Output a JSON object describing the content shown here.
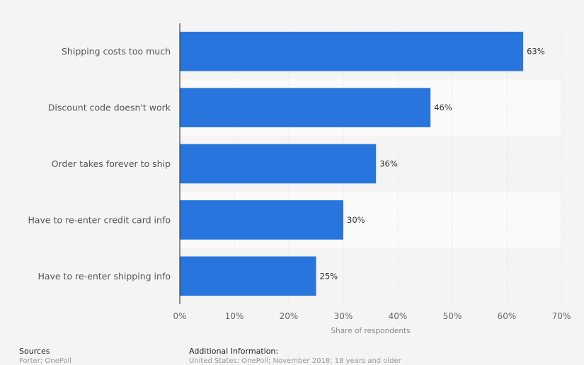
{
  "chart_data": {
    "type": "bar",
    "orientation": "horizontal",
    "categories": [
      "Shipping costs too much",
      "Discount code doesn't work",
      "Order takes forever to ship",
      "Have to re-enter credit card info",
      "Have to re-enter shipping info"
    ],
    "values": [
      63,
      46,
      36,
      30,
      25
    ],
    "value_labels": [
      "63%",
      "46%",
      "36%",
      "30%",
      "25%"
    ],
    "xlim": [
      0,
      70
    ],
    "xticks": [
      "0%",
      "10%",
      "20%",
      "30%",
      "40%",
      "50%",
      "60%",
      "70%"
    ],
    "xlabel": "Share of respondents",
    "bar_color": "#2876dd",
    "grid": true
  },
  "footer": {
    "sources_title": "Sources",
    "sources_text": "Forter; OnePoll",
    "info_title": "Additional Information:",
    "info_text": "United States; OnePoll; November 2018; 18 years and older"
  }
}
